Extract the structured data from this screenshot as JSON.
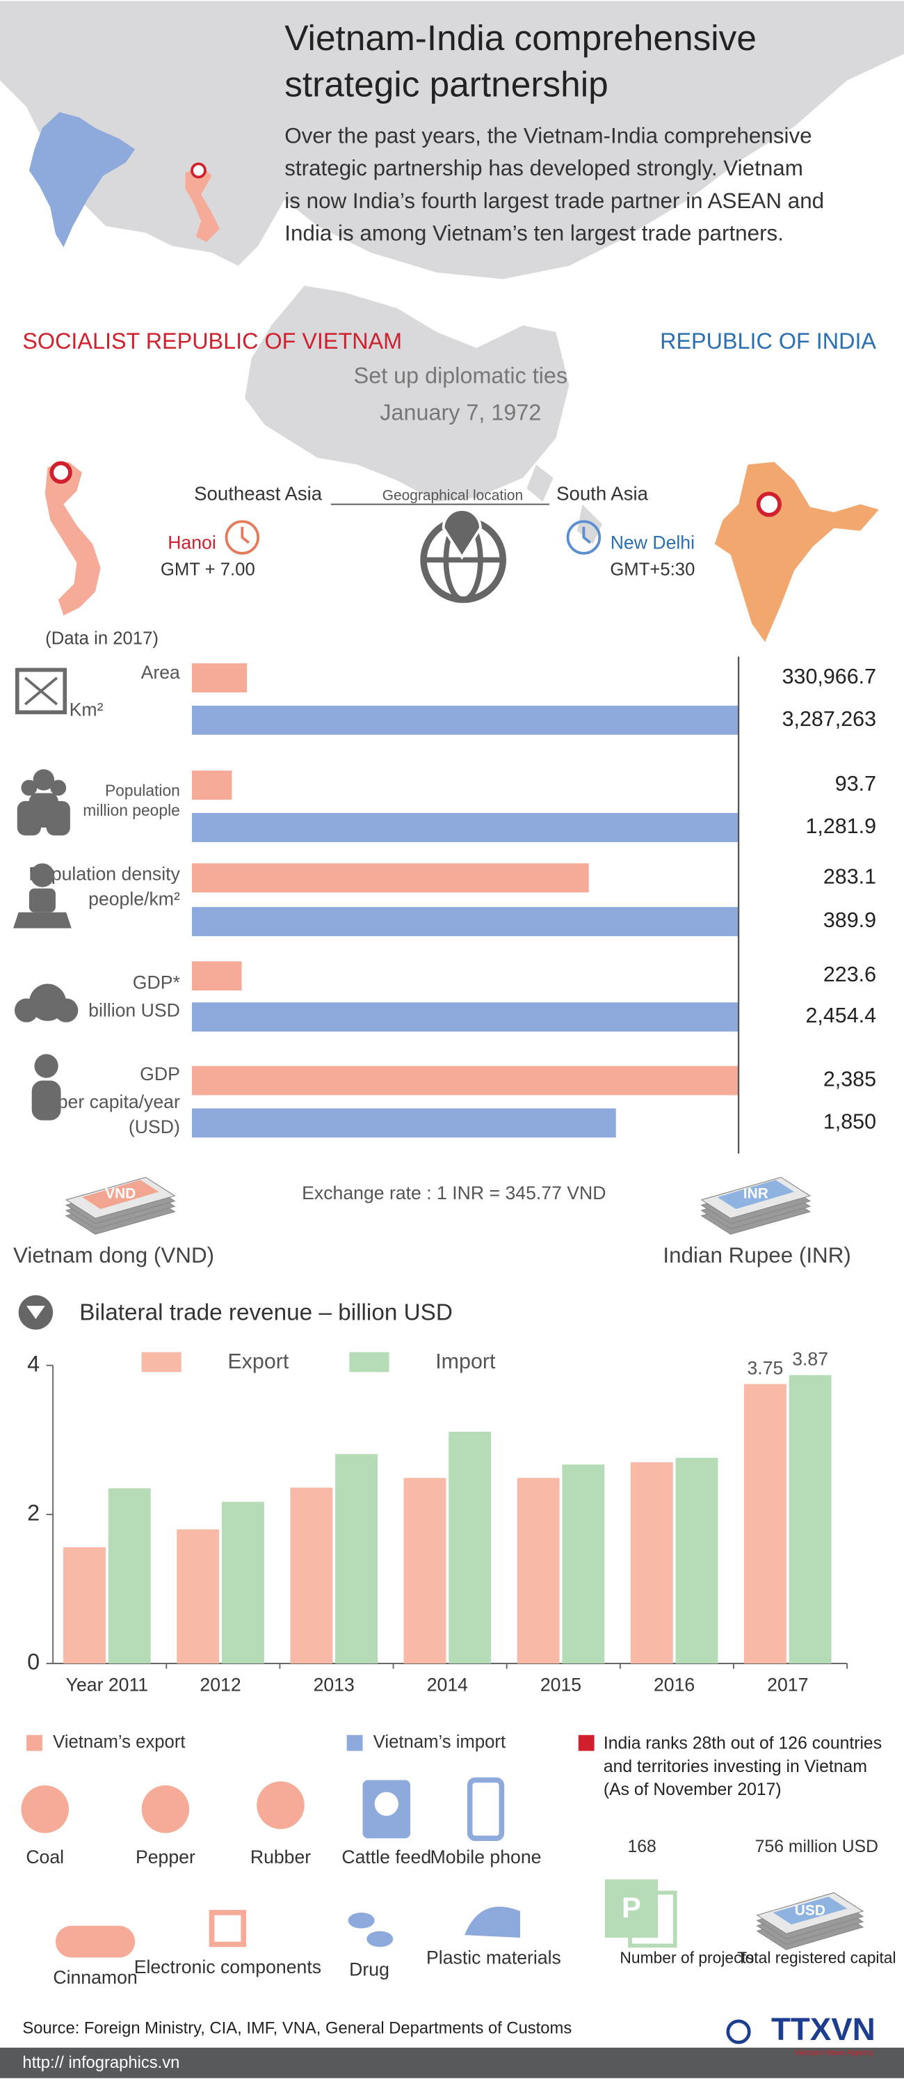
{
  "header": {
    "title": [
      "Vietnam-India comprehensive",
      "strategic partnership"
    ],
    "intro": [
      "Over the past years, the Vietnam-India comprehensive",
      "strategic partnership has developed strongly. Vietnam",
      "is now India’s fourth largest trade partner in ASEAN and",
      "India is among Vietnam’s ten largest trade partners."
    ]
  },
  "countries": {
    "left": "SOCIALIST REPUBLIC OF VIETNAM",
    "right": "REPUBLIC OF INDIA"
  },
  "ties": {
    "label": "Set up diplomatic ties",
    "date": "January 7, 1972"
  },
  "location": {
    "left_region": "Southeast Asia",
    "label": "Geographical location",
    "right_region": "South Asia",
    "left_capital": "Hanoi",
    "left_timezone": "GMT + 7.00",
    "right_capital": "New Delhi",
    "right_timezone": "GMT+5:30",
    "note": "(Data in 2017)"
  },
  "exchange": {
    "rate": "Exchange rate : 1 INR = 345.77 VND",
    "left_note": "VND",
    "right_note": "INR",
    "left_currency": "Vietnam dong (VND)",
    "right_currency": "Indian Rupee (INR)"
  },
  "chart_data": [
    {
      "type": "paired-bar",
      "categories": [
        "Area",
        "Population",
        "Population density",
        "GDP*",
        "GDP"
      ],
      "units": [
        [
          "Km²"
        ],
        [
          "million people"
        ],
        [
          "people/km²"
        ],
        [
          "billion USD"
        ],
        [
          "per capita/year",
          "(USD)"
        ]
      ],
      "series": [
        {
          "color": "#f5ab98",
          "values": [
            330966.7,
            93.7,
            283.1,
            223.6,
            2385
          ],
          "value_labels": [
            "330,966.7",
            "93.7",
            "283.1",
            "223.6",
            "2,385"
          ]
        },
        {
          "color": "#8eaadd",
          "values": [
            3287263,
            1281.9,
            389.9,
            2454.4,
            1850
          ],
          "value_labels": [
            "3,287,263",
            "1,281.9",
            "389.9",
            "2,454.4",
            "1,850"
          ]
        }
      ]
    },
    {
      "type": "bar",
      "title": "Bilateral trade revenue – billion USD",
      "categories": [
        "Year 2011",
        "2012",
        "2013",
        "2014",
        "2015",
        "2016",
        "2017"
      ],
      "series": [
        {
          "name": "Export",
          "color": "#f8b9a7",
          "values": [
            1.56,
            1.8,
            2.36,
            2.49,
            2.49,
            2.7,
            3.75
          ],
          "value_labels": [
            null,
            null,
            null,
            null,
            null,
            null,
            "3.75"
          ]
        },
        {
          "name": "Import",
          "color": "#b5dbb7",
          "values": [
            2.35,
            2.17,
            2.81,
            3.11,
            2.67,
            2.76,
            3.87
          ],
          "value_labels": [
            null,
            null,
            null,
            null,
            null,
            null,
            "3.87"
          ]
        }
      ],
      "ylim": [
        0,
        4
      ],
      "yticks": [
        0,
        2,
        4
      ],
      "legend": "top"
    }
  ],
  "products": {
    "export_legend": "Vietnam’s export",
    "import_legend": "Vietnam’s import",
    "export_items": [
      "Coal",
      "Pepper",
      "Rubber",
      "Cinnamon",
      "Electronic components"
    ],
    "import_items": [
      "Cattle feed",
      "Mobile phone",
      "Drug",
      "Plastic materials"
    ]
  },
  "investment": {
    "note": [
      "India ranks 28th out of 126 countries",
      "and territories investing in Vietnam",
      "(As of November 2017)"
    ],
    "projects": "168",
    "projects_label": "Number of projects",
    "capital": "756 million USD",
    "capital_label": "Total registered capital",
    "projects_icon": "P",
    "capital_icon": "USD"
  },
  "footer": {
    "source": "Source: Foreign Ministry, CIA, IMF, VNA, General Departments of Customs",
    "url": "http:// infographics.vn",
    "logo": "TTXVN",
    "agency": "Vietnam News Agency"
  }
}
